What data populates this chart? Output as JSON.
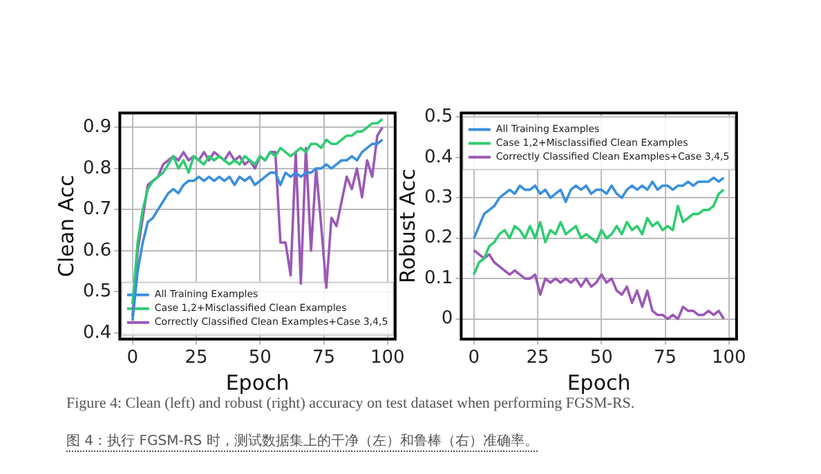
{
  "chart_data": [
    {
      "type": "line",
      "xlabel": "Epoch",
      "ylabel": "Clean Acc",
      "xlim": [
        -5,
        103
      ],
      "ylim": [
        0.385,
        0.935
      ],
      "xticks": [
        0,
        25,
        50,
        75,
        100
      ],
      "yticks": [
        0.4,
        0.5,
        0.6,
        0.7,
        0.8,
        0.9
      ],
      "grid": true,
      "legend": "bottom",
      "marker": "none",
      "x": [
        0,
        2,
        4,
        6,
        8,
        10,
        12,
        14,
        16,
        18,
        20,
        22,
        24,
        26,
        28,
        30,
        32,
        34,
        36,
        38,
        40,
        42,
        44,
        46,
        48,
        50,
        52,
        54,
        56,
        58,
        60,
        62,
        64,
        66,
        68,
        70,
        72,
        74,
        76,
        78,
        80,
        82,
        84,
        86,
        88,
        90,
        92,
        94,
        96,
        98
      ],
      "series": [
        {
          "name": "All Training Examples",
          "color": "#3a8fdd",
          "values": [
            0.43,
            0.55,
            0.62,
            0.67,
            0.68,
            0.7,
            0.72,
            0.74,
            0.75,
            0.74,
            0.76,
            0.77,
            0.77,
            0.78,
            0.77,
            0.78,
            0.77,
            0.78,
            0.77,
            0.78,
            0.76,
            0.78,
            0.77,
            0.78,
            0.76,
            0.77,
            0.78,
            0.79,
            0.79,
            0.76,
            0.79,
            0.78,
            0.79,
            0.78,
            0.79,
            0.79,
            0.8,
            0.8,
            0.81,
            0.8,
            0.81,
            0.82,
            0.82,
            0.83,
            0.82,
            0.84,
            0.85,
            0.86,
            0.86,
            0.87
          ]
        },
        {
          "name": "Case 1,2+Misclassified Clean Examples",
          "color": "#2ecc71",
          "values": [
            0.47,
            0.62,
            0.7,
            0.75,
            0.77,
            0.78,
            0.79,
            0.81,
            0.83,
            0.8,
            0.82,
            0.79,
            0.83,
            0.82,
            0.81,
            0.83,
            0.82,
            0.83,
            0.82,
            0.81,
            0.82,
            0.81,
            0.83,
            0.82,
            0.81,
            0.83,
            0.82,
            0.84,
            0.83,
            0.85,
            0.84,
            0.83,
            0.84,
            0.85,
            0.84,
            0.86,
            0.86,
            0.85,
            0.87,
            0.86,
            0.86,
            0.87,
            0.88,
            0.88,
            0.89,
            0.89,
            0.9,
            0.91,
            0.91,
            0.92
          ]
        },
        {
          "name": "Correctly Classified Clean Examples+Case 3,4,5",
          "color": "#9b59b6",
          "values": [
            0.44,
            0.6,
            0.68,
            0.76,
            0.77,
            0.78,
            0.81,
            0.82,
            0.83,
            0.82,
            0.84,
            0.82,
            0.83,
            0.82,
            0.84,
            0.82,
            0.84,
            0.83,
            0.82,
            0.84,
            0.82,
            0.83,
            0.81,
            0.82,
            0.8,
            0.83,
            0.82,
            0.84,
            0.84,
            0.62,
            0.62,
            0.54,
            0.84,
            0.52,
            0.85,
            0.6,
            0.8,
            0.66,
            0.51,
            0.68,
            0.66,
            0.72,
            0.78,
            0.75,
            0.8,
            0.73,
            0.82,
            0.78,
            0.88,
            0.9
          ]
        }
      ],
      "annotations": [
        "Figure 4: Clean (left) and robust (right) accuracy on test dataset when performing FGSM-RS.",
        "图 4：执行 FGSM-RS 时，测试数据集上的干净（左）和鲁棒（右）准确率。"
      ]
    },
    {
      "type": "line",
      "xlabel": "Epoch",
      "ylabel": "Robust Acc",
      "xlim": [
        -5,
        103
      ],
      "ylim": [
        -0.05,
        0.51
      ],
      "xticks": [
        0,
        25,
        50,
        75,
        100
      ],
      "yticks": [
        0.0,
        0.1,
        0.2,
        0.3,
        0.4,
        0.5
      ],
      "grid": true,
      "legend": "top",
      "marker": "none",
      "x": [
        0,
        2,
        4,
        6,
        8,
        10,
        12,
        14,
        16,
        18,
        20,
        22,
        24,
        26,
        28,
        30,
        32,
        34,
        36,
        38,
        40,
        42,
        44,
        46,
        48,
        50,
        52,
        54,
        56,
        58,
        60,
        62,
        64,
        66,
        68,
        70,
        72,
        74,
        76,
        78,
        80,
        82,
        84,
        86,
        88,
        90,
        92,
        94,
        96,
        98
      ],
      "series": [
        {
          "name": "All Training Examples",
          "color": "#3a8fdd",
          "values": [
            0.2,
            0.23,
            0.26,
            0.27,
            0.28,
            0.3,
            0.31,
            0.32,
            0.31,
            0.33,
            0.32,
            0.32,
            0.33,
            0.31,
            0.32,
            0.3,
            0.31,
            0.32,
            0.29,
            0.32,
            0.33,
            0.32,
            0.33,
            0.31,
            0.32,
            0.32,
            0.31,
            0.33,
            0.31,
            0.3,
            0.32,
            0.33,
            0.32,
            0.33,
            0.32,
            0.34,
            0.32,
            0.33,
            0.33,
            0.32,
            0.33,
            0.33,
            0.34,
            0.33,
            0.34,
            0.34,
            0.34,
            0.35,
            0.34,
            0.35
          ]
        },
        {
          "name": "Case 1,2+Misclassified Clean Examples",
          "color": "#2ecc71",
          "values": [
            0.11,
            0.14,
            0.15,
            0.18,
            0.19,
            0.21,
            0.22,
            0.2,
            0.23,
            0.22,
            0.2,
            0.23,
            0.2,
            0.24,
            0.19,
            0.22,
            0.21,
            0.24,
            0.21,
            0.22,
            0.23,
            0.2,
            0.21,
            0.2,
            0.19,
            0.22,
            0.2,
            0.21,
            0.23,
            0.21,
            0.24,
            0.22,
            0.23,
            0.21,
            0.25,
            0.23,
            0.24,
            0.22,
            0.23,
            0.22,
            0.28,
            0.24,
            0.25,
            0.26,
            0.26,
            0.27,
            0.27,
            0.28,
            0.31,
            0.32
          ]
        },
        {
          "name": "Correctly Classified Clean Examples+Case 3,4,5",
          "color": "#9b59b6",
          "values": [
            0.17,
            0.16,
            0.15,
            0.16,
            0.14,
            0.13,
            0.12,
            0.11,
            0.12,
            0.11,
            0.1,
            0.1,
            0.11,
            0.06,
            0.1,
            0.09,
            0.1,
            0.09,
            0.1,
            0.09,
            0.1,
            0.08,
            0.1,
            0.08,
            0.09,
            0.11,
            0.09,
            0.1,
            0.07,
            0.06,
            0.08,
            0.04,
            0.07,
            0.03,
            0.07,
            0.02,
            0.01,
            0.01,
            0.0,
            0.01,
            0.0,
            0.03,
            0.02,
            0.02,
            0.01,
            0.01,
            0.02,
            0.01,
            0.02,
            0.0
          ]
        }
      ]
    }
  ]
}
